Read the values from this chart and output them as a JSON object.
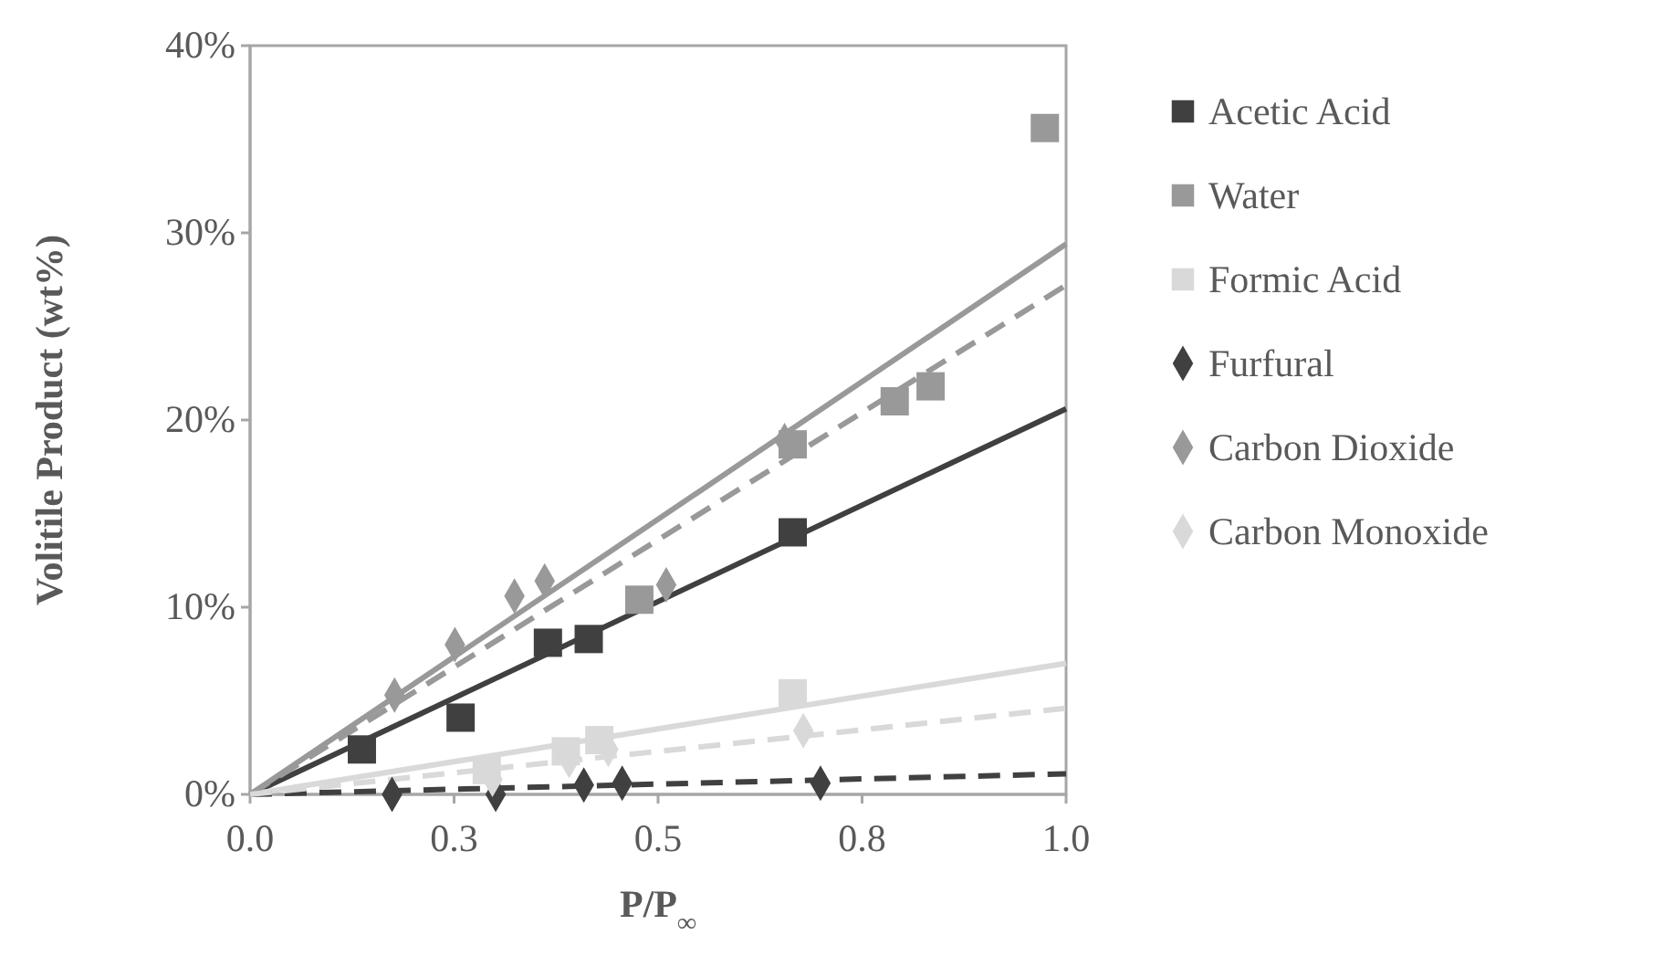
{
  "chart_data": {
    "type": "scatter",
    "xlabel": "P/P$_{∞}$",
    "ylabel": "Volitile Product  (wt%)",
    "xlim": [
      0,
      1
    ],
    "ylim": [
      0,
      40
    ],
    "xticks": [
      {
        "value": 0,
        "label": "0.0"
      },
      {
        "value": 0.25,
        "label": "0.3"
      },
      {
        "value": 0.5,
        "label": "0.5"
      },
      {
        "value": 0.75,
        "label": "0.8"
      },
      {
        "value": 1,
        "label": "1.0"
      }
    ],
    "yticks": [
      {
        "value": 0,
        "label": "0%"
      },
      {
        "value": 10,
        "label": "10%"
      },
      {
        "value": 20,
        "label": "20%"
      },
      {
        "value": 30,
        "label": "30%"
      },
      {
        "value": 40,
        "label": "40%"
      }
    ],
    "grid": false,
    "legend": "right",
    "series": [
      {
        "name": "Acetic Acid",
        "color": "#404040",
        "marker": "square",
        "x": [
          0.137,
          0.258,
          0.365,
          0.415,
          0.665
        ],
        "values": [
          2.4,
          4.1,
          8.1,
          8.3,
          14.0
        ]
      },
      {
        "name": "Water",
        "color": "#999999",
        "marker": "square",
        "x": [
          0.477,
          0.665,
          0.79,
          0.834,
          0.974
        ],
        "values": [
          10.4,
          18.7,
          21.0,
          21.8,
          35.6
        ]
      },
      {
        "name": "Formic Acid",
        "color": "#d9d9d9",
        "marker": "square",
        "x": [
          0.29,
          0.387,
          0.428,
          0.665
        ],
        "values": [
          1.3,
          2.3,
          2.9,
          5.4
        ]
      },
      {
        "name": "Furfural",
        "color": "#404040",
        "marker": "diamond",
        "x": [
          0.174,
          0.301,
          0.409,
          0.456,
          0.699
        ],
        "values": [
          0,
          0,
          0.5,
          0.6,
          0.6
        ]
      },
      {
        "name": "Carbon Dioxide",
        "color": "#999999",
        "marker": "diamond",
        "x": [
          0.177,
          0.251,
          0.324,
          0.361,
          0.51,
          0.655
        ],
        "values": [
          5.3,
          8.0,
          10.6,
          11.4,
          11.2,
          18.9
        ]
      },
      {
        "name": "Carbon Monoxide",
        "color": "#d9d9d9",
        "marker": "diamond",
        "x": [
          0.297,
          0.391,
          0.439,
          0.678
        ],
        "values": [
          0.8,
          1.8,
          2.4,
          3.4
        ]
      },
      {
        "type": "line",
        "color": "#404040",
        "line_style": "solid",
        "x": [
          0,
          1
        ],
        "values": [
          0,
          20.6
        ]
      },
      {
        "type": "line",
        "color": "#999999",
        "line_style": "solid",
        "x": [
          0,
          1
        ],
        "values": [
          0,
          29.4
        ]
      },
      {
        "type": "line",
        "color": "#d9d9d9",
        "line_style": "solid",
        "x": [
          0,
          1
        ],
        "values": [
          0,
          7.0
        ]
      },
      {
        "type": "line",
        "color": "#404040",
        "line_style": "dashed",
        "x": [
          0,
          1
        ],
        "values": [
          0,
          1.1
        ]
      },
      {
        "type": "line",
        "color": "#999999",
        "line_style": "dashed",
        "x": [
          0,
          1
        ],
        "values": [
          0,
          27.2
        ]
      },
      {
        "type": "line",
        "color": "#d9d9d9",
        "line_style": "dashed",
        "x": [
          0,
          1
        ],
        "values": [
          0,
          4.6
        ]
      }
    ]
  }
}
